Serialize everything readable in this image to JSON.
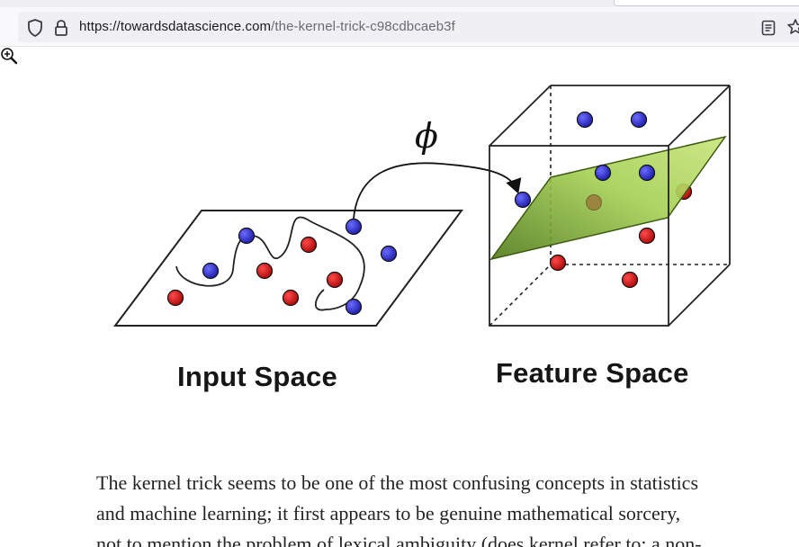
{
  "browser": {
    "url_domain": "https://towardsdatascience.com",
    "url_path": "/the-kernel-trick-c98cdbcaeb3f",
    "icons": [
      "shield-icon",
      "lock-icon",
      "reader-view-icon",
      "bookmark-star-icon"
    ]
  },
  "figure": {
    "phi_symbol": "ϕ",
    "input_space_label": "Input Space",
    "feature_space_label": "Feature Space",
    "colors": {
      "blue_point": "#2b2bd6",
      "red_point": "#d11a1a",
      "plane": "#9ccc4a"
    }
  },
  "article": {
    "lines": [
      "The kernel trick seems to be one of the most confusing concepts in statistics",
      "and machine learning; it first appears to be genuine mathematical sorcery,",
      "not to mention the problem of lexical ambiguity (does kernel refer to: a non-"
    ]
  }
}
